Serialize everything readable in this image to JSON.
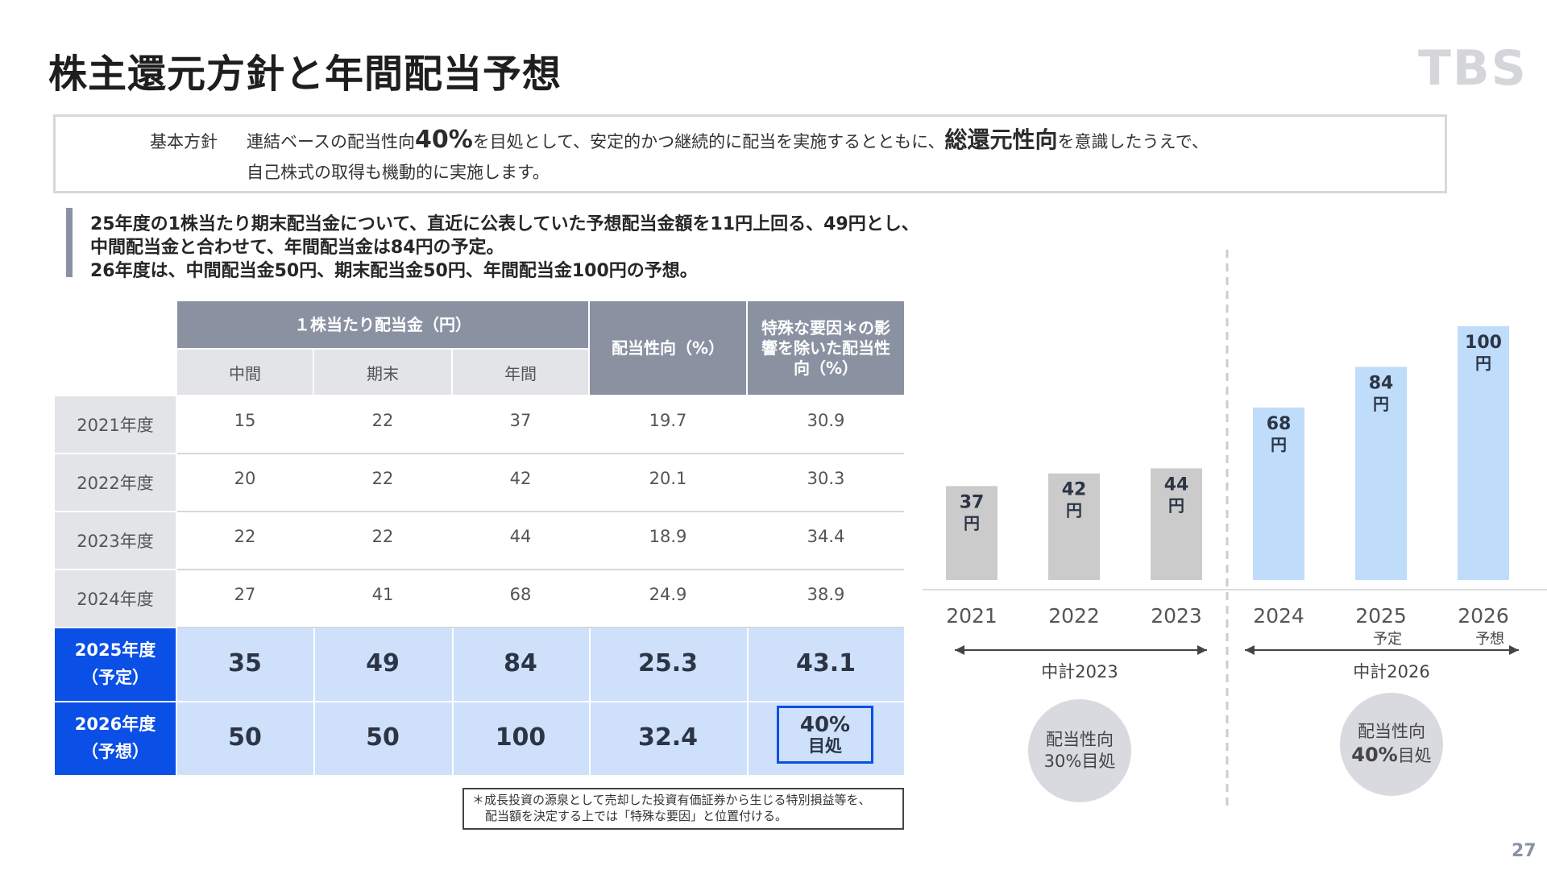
{
  "title": "株主還元方針と年間配当予想",
  "logo": "TBS",
  "policy": {
    "label": "基本方針",
    "line1_pre": "連結ベースの配当性向",
    "line1_pct": "40%",
    "line1_mid": "を目処として、安定的かつ継続的に配当を実施するとともに、",
    "line1_bold": "総還元性向",
    "line1_post": "を意識したうえで、",
    "line2": "自己株式の取得も機動的に実施します。"
  },
  "note": {
    "line1": "25年度の1株当たり期末配当金について、直近に公表していた予想配当金額を11円上回る、49円とし、",
    "line2": "中間配当金と合わせて、年間配当金は84円の予定。",
    "line3": "26年度は、中間配当金50円、期末配当金50円、年間配当金100円の予想。"
  },
  "table": {
    "header_group": "１株当たり配当金（円）",
    "sub_headers": [
      "中間",
      "期末",
      "年間"
    ],
    "header_payout": "配当性向（%）",
    "header_adjusted": "特殊な要因＊の影響を除いた配当性向（%）",
    "rows": [
      {
        "label": "2021年度",
        "sub": "",
        "values": [
          "15",
          "22",
          "37",
          "19.7",
          "30.9"
        ]
      },
      {
        "label": "2022年度",
        "sub": "",
        "values": [
          "20",
          "22",
          "42",
          "20.1",
          "30.3"
        ]
      },
      {
        "label": "2023年度",
        "sub": "",
        "values": [
          "22",
          "22",
          "44",
          "18.9",
          "34.4"
        ]
      },
      {
        "label": "2024年度",
        "sub": "",
        "values": [
          "27",
          "41",
          "68",
          "24.9",
          "38.9"
        ]
      },
      {
        "label": "2025年度",
        "sub": "（予定）",
        "values": [
          "35",
          "49",
          "84",
          "25.3",
          "43.1"
        ]
      },
      {
        "label": "2026年度",
        "sub": "（予想）",
        "values": [
          "50",
          "50",
          "100",
          "32.4",
          ""
        ]
      }
    ],
    "target_line1": "40%",
    "target_line2": "目処",
    "footnote_line1": "＊成長投資の源泉として売却した投資有価証券から生じる特別損益等を、",
    "footnote_line2": "配当額を決定する上では「特殊な要因」と位置付ける。"
  },
  "chart_data": {
    "type": "bar",
    "title": "",
    "xlabel": "",
    "ylabel": "",
    "categories": [
      "2021",
      "2022",
      "2023",
      "2024",
      "2025",
      "2026"
    ],
    "category_notes": [
      "",
      "",
      "",
      "",
      "予定",
      "予想"
    ],
    "values": [
      37,
      42,
      44,
      68,
      84,
      100
    ],
    "value_unit": "円",
    "ylim": [
      0,
      100
    ],
    "grid": false,
    "colors": [
      "#cbcbcb",
      "#cbcbcb",
      "#cbcbcb",
      "#bfdcfb",
      "#bfdcfb",
      "#bfdcfb"
    ],
    "periods": [
      {
        "label": "中計2023",
        "circle_line1": "配当性向",
        "circle_line2": "30%目処"
      },
      {
        "label": "中計2026",
        "circle_line1": "配当性向",
        "circle_pct": "40%",
        "circle_line2": "目処"
      }
    ]
  },
  "page_number": "27"
}
